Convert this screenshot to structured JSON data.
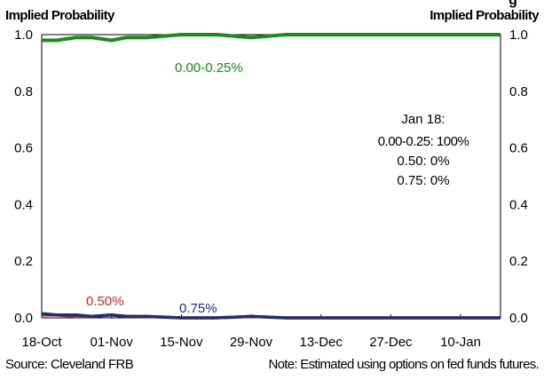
{
  "chart_data": {
    "type": "line",
    "title_fragment": "g",
    "ylabel_left": "Implied Probability",
    "ylabel_right": "Implied Probability",
    "ylim": [
      0,
      1
    ],
    "yticks": [
      "0.0",
      "0.2",
      "0.4",
      "0.6",
      "0.8",
      "1.0"
    ],
    "xtick_labels": [
      "18-Oct",
      "01-Nov",
      "15-Nov",
      "29-Nov",
      "13-Dec",
      "27-Dec",
      "10-Jan"
    ],
    "x_start": "2016-10-18",
    "x_end": "2017-01-18",
    "grid": false,
    "series": [
      {
        "name": "0.00-0.25%",
        "color": "#1a8c1a",
        "x": [
          "2016-10-18",
          "2016-10-21",
          "2016-10-25",
          "2016-10-28",
          "2016-11-01",
          "2016-11-04",
          "2016-11-08",
          "2016-11-15",
          "2016-11-22",
          "2016-11-29",
          "2016-12-06",
          "2016-12-13",
          "2016-12-20",
          "2016-12-27",
          "2017-01-03",
          "2017-01-10",
          "2017-01-18"
        ],
        "values": [
          0.98,
          0.98,
          0.99,
          0.99,
          0.98,
          0.99,
          0.99,
          1.0,
          1.0,
          0.99,
          1.0,
          1.0,
          1.0,
          1.0,
          1.0,
          1.0,
          1.0
        ]
      },
      {
        "name": "0.50%",
        "color": "#e8231e",
        "x": [
          "2016-10-18",
          "2016-10-21",
          "2016-10-25",
          "2016-10-28",
          "2016-11-01",
          "2016-11-04",
          "2016-11-08",
          "2016-11-15",
          "2016-11-22",
          "2016-11-29",
          "2016-12-06",
          "2016-12-13",
          "2016-12-20",
          "2016-12-27",
          "2017-01-03",
          "2017-01-10",
          "2017-01-18"
        ],
        "values": [
          0.01,
          0.01,
          0.005,
          0.005,
          0.01,
          0.005,
          0.005,
          0.0,
          0.0,
          0.005,
          0.0,
          0.0,
          0.0,
          0.0,
          0.0,
          0.0,
          0.0
        ]
      },
      {
        "name": "0.75%",
        "color": "#1f2d7a",
        "x": [
          "2016-10-18",
          "2016-10-21",
          "2016-10-25",
          "2016-10-28",
          "2016-11-01",
          "2016-11-04",
          "2016-11-08",
          "2016-11-15",
          "2016-11-22",
          "2016-11-29",
          "2016-12-06",
          "2016-12-13",
          "2016-12-20",
          "2016-12-27",
          "2017-01-03",
          "2017-01-10",
          "2017-01-18"
        ],
        "values": [
          0.015,
          0.01,
          0.01,
          0.005,
          0.01,
          0.005,
          0.005,
          0.0,
          0.0,
          0.005,
          0.0,
          0.0,
          0.0,
          0.0,
          0.0,
          0.0,
          0.0
        ]
      }
    ],
    "annotation": {
      "title": "Jan 18:",
      "lines": [
        "0.00-0.25: 100%",
        "0.50: 0%",
        "0.75: 0%"
      ]
    },
    "source": "Source: Cleveland FRB",
    "note": "Note: Estimated using options on fed funds futures."
  }
}
